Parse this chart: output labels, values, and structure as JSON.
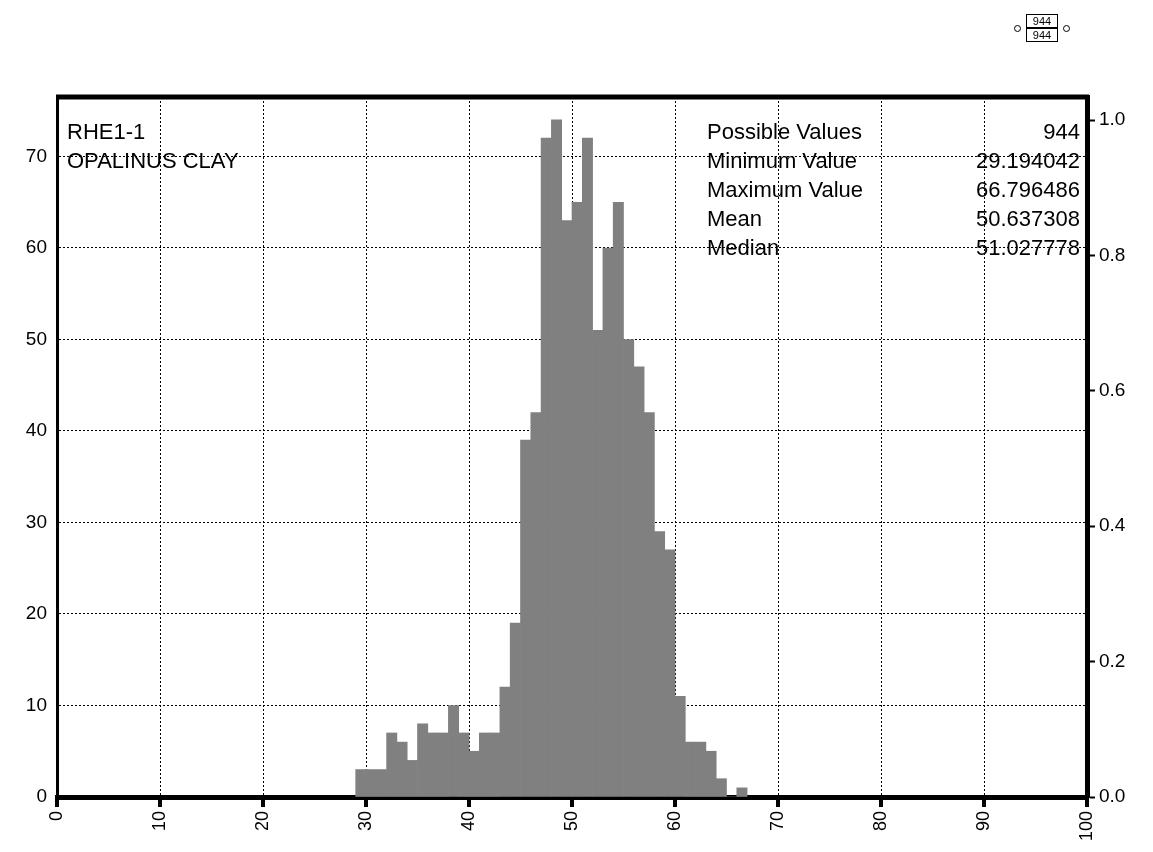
{
  "chart_data": {
    "type": "histogram",
    "title": "RHE1-1",
    "subtitle": "OPALINUS CLAY",
    "bins": [
      29,
      30,
      31,
      32,
      33,
      34,
      35,
      36,
      37,
      38,
      39,
      40,
      41,
      42,
      43,
      44,
      45,
      46,
      47,
      48,
      49,
      50,
      51,
      52,
      53,
      54,
      55,
      56,
      57,
      58,
      59,
      60,
      61,
      62,
      63,
      64,
      65,
      66,
      67
    ],
    "values": [
      3,
      3,
      3,
      7,
      6,
      4,
      8,
      7,
      7,
      10,
      7,
      5,
      7,
      7,
      12,
      19,
      39,
      42,
      72,
      74,
      63,
      65,
      72,
      51,
      60,
      65,
      50,
      47,
      42,
      29,
      27,
      11,
      6,
      6,
      5,
      2,
      0,
      1
    ],
    "color": "#808080",
    "xlim": [
      0,
      100
    ],
    "xticks": [
      0,
      10,
      20,
      30,
      40,
      50,
      60,
      70,
      80,
      90,
      100
    ],
    "ylim": [
      0,
      76.5
    ],
    "yticks": [
      0,
      10,
      20,
      30,
      40,
      50,
      60,
      70
    ],
    "y2lim": [
      0,
      1.034
    ],
    "y2ticks": [
      {
        "value": 0,
        "label": "0.0"
      },
      {
        "value": 0.2,
        "label": "0.2"
      },
      {
        "value": 0.4,
        "label": "0.4"
      },
      {
        "value": 0.6,
        "label": "0.6"
      },
      {
        "value": 0.8,
        "label": "0.8"
      },
      {
        "value": 1,
        "label": "1.0"
      }
    ],
    "grid": true,
    "legend": false,
    "annotations": [
      "Possible Values",
      "944",
      "Minimum Value",
      "29.194042",
      "Maximum Value",
      "66.796486",
      "Mean",
      "50.637308",
      "Median",
      "51.027778",
      "944",
      "944"
    ]
  }
}
